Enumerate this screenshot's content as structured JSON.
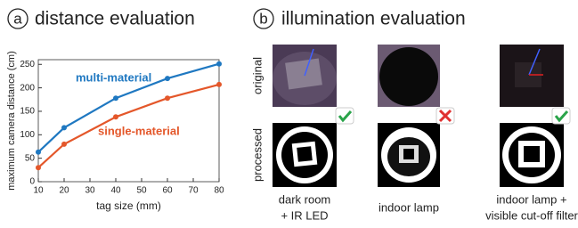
{
  "chart_data": {
    "type": "line",
    "panel_label": "a",
    "title": "distance evaluation",
    "x_label": "tag size (mm)",
    "y_label": "maximum camera distance (cm)",
    "x": [
      10,
      20,
      40,
      60,
      80
    ],
    "series": [
      {
        "name": "multi-material",
        "color": "#1f78c1",
        "values": [
          63,
          115,
          178,
          220,
          251
        ]
      },
      {
        "name": "single-material",
        "color": "#e4572a",
        "values": [
          30,
          80,
          138,
          178,
          207
        ]
      }
    ],
    "xlim": [
      10,
      80
    ],
    "xticks": [
      10,
      20,
      30,
      40,
      50,
      60,
      70,
      80
    ],
    "ylim": [
      0,
      260
    ],
    "yticks": [
      0,
      50,
      100,
      150,
      200,
      250
    ]
  },
  "panel_b": {
    "label": "b",
    "title": "illumination evaluation",
    "row_labels": [
      "original",
      "processed"
    ],
    "columns": [
      {
        "caption": [
          "dark room",
          "+ IR LED"
        ]
      },
      {
        "caption": [
          "indoor lamp"
        ]
      },
      {
        "caption": [
          "indoor lamp +",
          "visible cut-off filter"
        ]
      }
    ]
  }
}
